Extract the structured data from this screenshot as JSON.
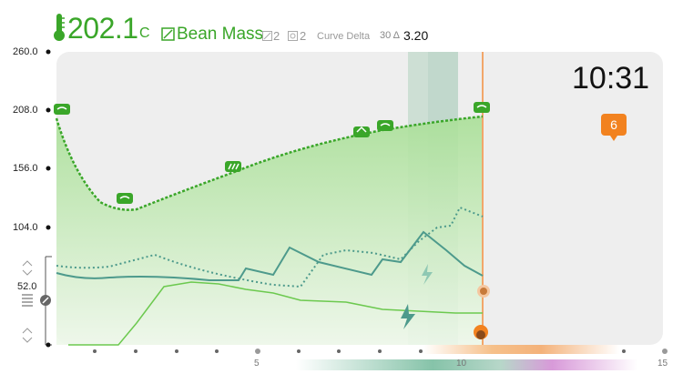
{
  "header": {
    "temperature": "202.1",
    "temperature_unit": "C",
    "thermometer_icon": "thermometer-icon",
    "bean_mass_label": "Bean Mass",
    "stat_a": "2",
    "stat_b": "2",
    "curve_delta_label": "Curve Delta",
    "delta_window": "30 Δ",
    "delta_value": "3.20"
  },
  "clock": "10:31",
  "badge": "6",
  "colors": {
    "bean_temp": "#3aa629",
    "area_fill": "#bfe8b2",
    "ror_line": "#4d9a8c",
    "power_line": "#6cc94f",
    "accent_orange": "#f2821f"
  },
  "chart_data": {
    "type": "line",
    "y_ticks": [
      "260.0",
      "208.0",
      "156.0",
      "104.0",
      "52.0"
    ],
    "x_ticks": [
      "5",
      "10",
      "15"
    ],
    "ylim": [
      0,
      260
    ],
    "xlim": [
      0,
      15
    ]
  }
}
